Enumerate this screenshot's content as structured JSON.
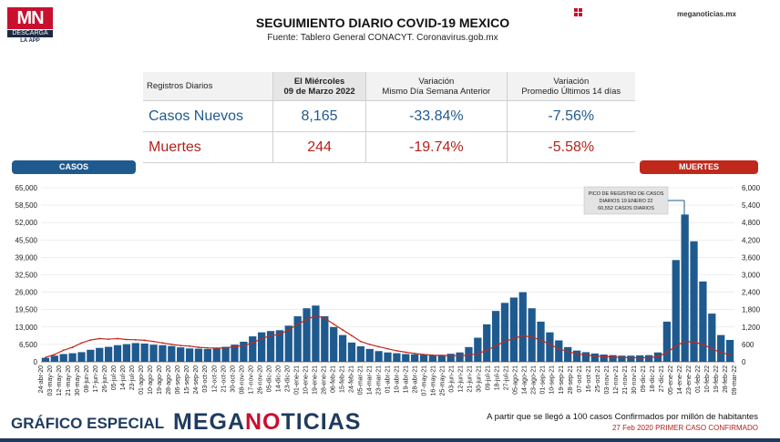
{
  "header": {
    "logo_mn": "MN",
    "logo_descarga": "DESCARGA",
    "logo_app": "LA APP",
    "title": "SEGUIMIENTO DIARIO COVID-19 MEXICO",
    "source": "Fuente: Tablero General CONACYT. Coronavirus.gob.mx",
    "brand_small": "meganoticias.mx",
    "grid_icon": "grid-icon"
  },
  "table": {
    "header_label": "Registros Diarios",
    "date_line1": "El Miércoles",
    "date_line2": "09 de Marzo 2022",
    "var1_line1": "Variación",
    "var1_line2": "Mismo Día Semana Anterior",
    "var2_line1": "Variación",
    "var2_line2": "Promedio Últimos 14 días",
    "rows": [
      {
        "label": "Casos Nuevos",
        "value": "8,165",
        "var_week": "-33.84%",
        "var_14": "-7.56%"
      },
      {
        "label": "Muertes",
        "value": "244",
        "var_week": "-19.74%",
        "var_14": "-5.58%"
      }
    ]
  },
  "pills": {
    "casos": "CASOS",
    "muertes": "MUERTES"
  },
  "annotation": {
    "line1": "PICO DE REGISTRO DE CASOS",
    "line2": "DIARIOS 19 ENERO 22",
    "line3": "60,552 CASOS DIARIOS"
  },
  "footer": {
    "grafico": "GRÁFICO ESPECIAL",
    "brand_part1": "MEGA",
    "brand_part2": "NO",
    "brand_part3": "TICIAS",
    "note1": "A partir que se llegó a 100 casos Confirmados por millón de habitantes",
    "note2": "27 Feb 2020 PRIMER CASO CONFIRMADO"
  },
  "colors": {
    "casos": "#1f5a8f",
    "muertes": "#c0281b",
    "brand": "#1f3b5f",
    "accent": "#c8102e"
  },
  "chart_data": {
    "type": "bar",
    "title": "",
    "xlabel": "",
    "ylabel": "",
    "ylim": [
      0,
      65000
    ],
    "y2lim": [
      0,
      6000
    ],
    "y_ticks": [
      "65,000",
      "58,500",
      "52,000",
      "45,500",
      "39,000",
      "32,500",
      "26,000",
      "19,500",
      "13,000",
      "6,500",
      "0"
    ],
    "y2_ticks": [
      "6,000",
      "5,400",
      "4,800",
      "4,200",
      "3,600",
      "3,000",
      "2,400",
      "1,800",
      "1,200",
      "600",
      "0"
    ],
    "x_tick_labels": [
      "24-abr-20",
      "03-may-20",
      "12-may-20",
      "21-may-20",
      "30-may-20",
      "08-jun-20",
      "17-jun-20",
      "26-jun-20",
      "05-jul-20",
      "14-jul-20",
      "23-jul-20",
      "01-ago-20",
      "10-ago-20",
      "19-ago-20",
      "28-ago-20",
      "06-sep-20",
      "15-sep-20",
      "24-sep-20",
      "03-oct-20",
      "12-oct-20",
      "21-oct-20",
      "30-oct-20",
      "08-nov-20",
      "17-nov-20",
      "26-nov-20",
      "05-dic-20",
      "14-dic-20",
      "23-dic-20",
      "01-ene-21",
      "10-ene-21",
      "19-ene-21",
      "28-ene-21",
      "06-feb-21",
      "15-feb-21",
      "24-feb-21",
      "05-mar-21",
      "14-mar-21",
      "23-mar-21",
      "01-abr-21",
      "10-abr-21",
      "19-abr-21",
      "28-abr-21",
      "07-may-21",
      "16-may-21",
      "25-may-21",
      "03-jun-21",
      "12-jun-21",
      "21-jun-21",
      "30-jun-21",
      "09-jul-21",
      "18-jul-21",
      "27-jul-21",
      "05-ago-21",
      "14-ago-21",
      "23-ago-21",
      "01-sep-21",
      "10-sep-21",
      "19-sep-21",
      "28-sep-21",
      "07-oct-21",
      "16-oct-21",
      "25-oct-21",
      "03-nov-21",
      "12-nov-21",
      "21-nov-21",
      "30-nov-21",
      "09-dic-21",
      "18-dic-21",
      "27-dic-21",
      "05-ene-22",
      "14-ene-22",
      "23-ene-22",
      "01-feb-22",
      "10-feb-22",
      "19-feb-22",
      "28-feb-22",
      "09-mar-22"
    ],
    "series": [
      {
        "name": "CASOS",
        "axis": "left",
        "type": "bar",
        "values": [
          1500,
          2300,
          2900,
          3200,
          3600,
          4500,
          5200,
          5600,
          6200,
          6600,
          7000,
          6800,
          6400,
          6200,
          5900,
          5400,
          5000,
          4900,
          4800,
          5000,
          5600,
          6400,
          7500,
          9500,
          11000,
          11500,
          11800,
          13500,
          17000,
          20000,
          21000,
          17000,
          13000,
          10000,
          7200,
          5800,
          4800,
          4000,
          3500,
          3200,
          2900,
          2800,
          2600,
          2500,
          2600,
          3000,
          3500,
          5500,
          9000,
          14000,
          19000,
          22000,
          24000,
          26000,
          20000,
          15000,
          11000,
          8000,
          5500,
          4200,
          3600,
          3100,
          2700,
          2500,
          2300,
          2300,
          2400,
          2500,
          3500,
          15000,
          38000,
          55000,
          45000,
          30000,
          18000,
          10000,
          8165
        ]
      },
      {
        "name": "MUERTES",
        "axis": "right",
        "type": "line",
        "values": [
          150,
          250,
          400,
          500,
          650,
          750,
          800,
          780,
          800,
          770,
          760,
          740,
          700,
          650,
          600,
          560,
          540,
          500,
          480,
          470,
          480,
          520,
          560,
          650,
          800,
          900,
          950,
          1100,
          1300,
          1450,
          1600,
          1500,
          1300,
          1100,
          900,
          700,
          600,
          520,
          450,
          380,
          330,
          290,
          250,
          230,
          220,
          210,
          210,
          230,
          280,
          400,
          550,
          700,
          800,
          900,
          850,
          750,
          600,
          450,
          350,
          280,
          230,
          200,
          180,
          160,
          150,
          140,
          140,
          140,
          180,
          320,
          550,
          700,
          680,
          600,
          450,
          320,
          244
        ]
      }
    ]
  }
}
